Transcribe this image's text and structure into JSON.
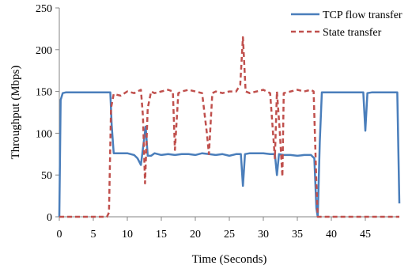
{
  "chart_data": {
    "type": "line",
    "xlabel": "Time (Seconds)",
    "ylabel": "Throughput (Mbps)",
    "xlim": [
      0,
      50
    ],
    "ylim": [
      0,
      250
    ],
    "x_ticks": [
      0,
      5,
      10,
      15,
      20,
      25,
      30,
      35,
      40,
      45
    ],
    "y_ticks": [
      0,
      50,
      100,
      150,
      200,
      250
    ],
    "grid": false,
    "legend_position": "top-right",
    "series": [
      {
        "name": "TCP flow transfer",
        "color": "#4a7ebb",
        "style": "solid",
        "x": [
          0,
          0.2,
          0.5,
          1,
          2,
          3,
          4,
          5,
          6,
          7,
          7.5,
          7.7,
          8,
          9,
          10,
          11,
          11.5,
          12,
          12.5,
          12.7,
          13,
          13.5,
          14,
          15,
          16,
          17,
          18,
          19,
          20,
          21,
          22,
          23,
          24,
          25,
          26,
          26.7,
          27,
          27.3,
          28,
          29,
          30,
          31,
          31.7,
          32,
          32.3,
          33,
          34,
          35,
          36,
          37,
          37.5,
          37.8,
          38,
          38.3,
          38.6,
          39,
          40,
          41,
          42,
          43,
          44,
          44.7,
          45,
          45.3,
          46,
          47,
          48,
          49,
          49.7,
          50
        ],
        "y": [
          0,
          140,
          148,
          149,
          149,
          149,
          149,
          149,
          149,
          149,
          149,
          110,
          76,
          76,
          76,
          74,
          70,
          62,
          95,
          108,
          73,
          73,
          76,
          74,
          75,
          74,
          75,
          75,
          74,
          76,
          75,
          74,
          75,
          73,
          75,
          75,
          37,
          75,
          76,
          76,
          76,
          75,
          75,
          50,
          75,
          74,
          74,
          73,
          74,
          74,
          70,
          10,
          0,
          90,
          149,
          149,
          149,
          149,
          149,
          149,
          149,
          149,
          103,
          148,
          149,
          149,
          149,
          149,
          149,
          16
        ]
      },
      {
        "name": "State transfer",
        "color": "#c0504d",
        "style": "dashed",
        "x": [
          0,
          1,
          2,
          3,
          4,
          5,
          6,
          7,
          7.3,
          7.6,
          8,
          9,
          10,
          11,
          12,
          12.3,
          12.6,
          13,
          13.5,
          14,
          15,
          16,
          16.7,
          17,
          17.5,
          18,
          19,
          20,
          21,
          21.7,
          22,
          22.5,
          23,
          24,
          25,
          26,
          26.6,
          27,
          27.4,
          28,
          29,
          30,
          31,
          31.7,
          32,
          32.4,
          32.8,
          33,
          34,
          35,
          36,
          37,
          37.4,
          37.8,
          38,
          39,
          40,
          41,
          42,
          43,
          44,
          45,
          46,
          47,
          48,
          49,
          50
        ],
        "y": [
          0,
          0,
          0,
          0,
          0,
          0,
          0,
          0,
          5,
          130,
          147,
          145,
          150,
          148,
          152,
          120,
          40,
          130,
          150,
          148,
          150,
          152,
          150,
          80,
          148,
          150,
          152,
          150,
          148,
          100,
          75,
          148,
          150,
          148,
          150,
          150,
          158,
          215,
          150,
          148,
          150,
          152,
          148,
          70,
          150,
          105,
          48,
          148,
          150,
          152,
          150,
          152,
          150,
          40,
          0,
          0,
          0,
          0,
          0,
          0,
          0,
          0,
          0,
          0,
          0,
          0,
          0
        ]
      }
    ]
  }
}
